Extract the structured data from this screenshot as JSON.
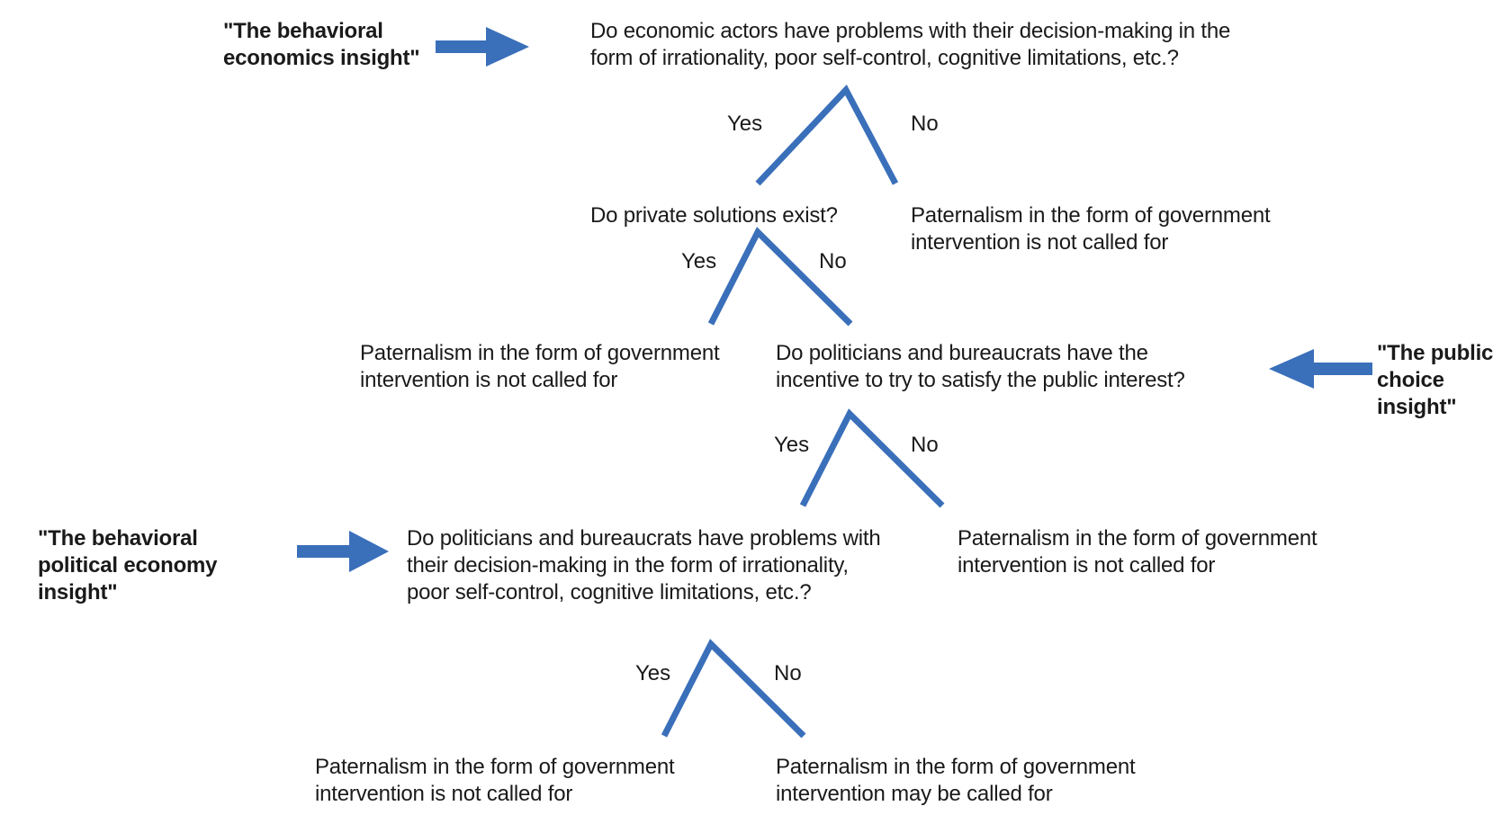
{
  "diagram": {
    "accent_color": "#3a6fba",
    "insights": {
      "behavioral_economics": "\"The behavioral\neconomics insight\"",
      "public_choice": "\"The public\nchoice\ninsight\"",
      "behavioral_political_economy": "\"The behavioral\npolitical economy\ninsight\""
    },
    "questions": {
      "q1": "Do economic actors have problems with their decision-making in the\nform of irrationality, poor self-control, cognitive limitations, etc.?",
      "q2": "Do private solutions exist?",
      "q3": "Do politicians and bureaucrats have the\nincentive to try to satisfy the public interest?",
      "q4": "Do politicians and bureaucrats have problems with\ntheir decision-making in the form of irrationality,\npoor self-control, cognitive limitations, etc.?"
    },
    "outcomes": {
      "o1": "Paternalism in the form of government\nintervention is not called for",
      "o2": "Paternalism in the form of government\nintervention is not called for",
      "o3": "Paternalism in the form of government\nintervention is not called for",
      "o4": "Paternalism in the form of government\nintervention is not called for",
      "o5": "Paternalism in the form of government\nintervention may be called for"
    },
    "branch_labels": {
      "yes": "Yes",
      "no": "No"
    }
  }
}
